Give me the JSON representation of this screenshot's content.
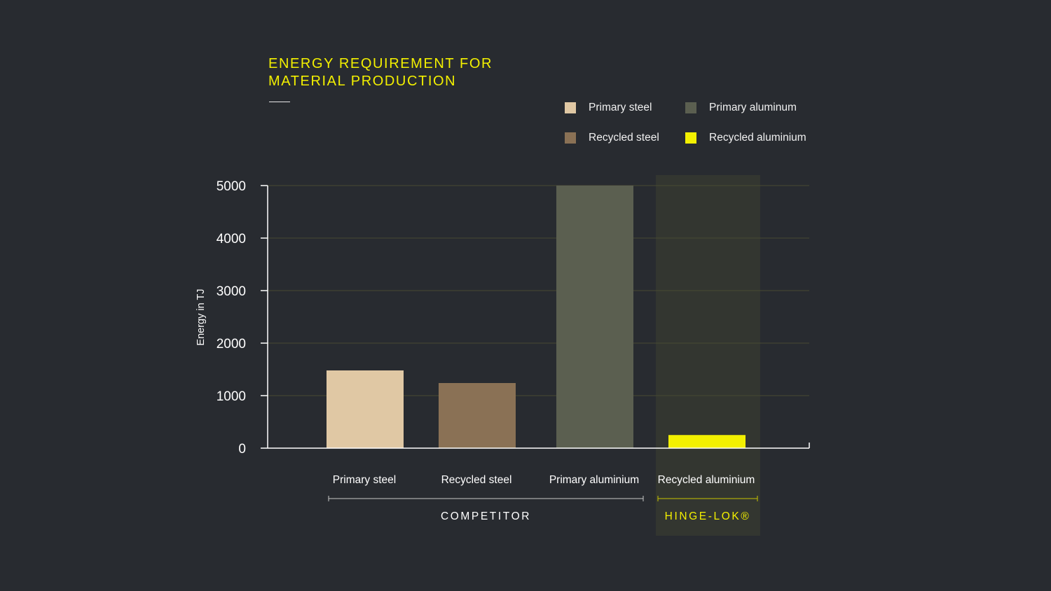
{
  "chart_data": {
    "type": "bar",
    "title_lines": [
      "ENERGY REQUIREMENT FOR",
      "MATERIAL PRODUCTION"
    ],
    "ylabel": "Energy in TJ",
    "ylim": [
      0,
      5000
    ],
    "yticks": [
      "0",
      "1000",
      "2000",
      "3000",
      "4000",
      "5000"
    ],
    "grid": true,
    "legend_position": "top-right",
    "legend": [
      {
        "label": "Primary steel",
        "color": "#e0c8a4"
      },
      {
        "label": "Primary aluminum",
        "color": "#5b5f50"
      },
      {
        "label": "Recycled steel",
        "color": "#8a7155"
      },
      {
        "label": "Recycled aluminium",
        "color": "#f3f000"
      }
    ],
    "categories": [
      "Primary steel",
      "Recycled steel",
      "Primary aluminium",
      "Recycled aluminium"
    ],
    "values": [
      1480,
      1240,
      5000,
      250
    ],
    "colors": [
      "#e0c8a4",
      "#8a7155",
      "#5b5f50",
      "#f3f000"
    ],
    "groups": [
      {
        "label": "COMPETITOR",
        "members": [
          0,
          1,
          2
        ],
        "color": "#ffffff"
      },
      {
        "label": "HINGE-LOK®",
        "members": [
          3
        ],
        "color": "#f3f000",
        "highlighted": true
      }
    ]
  }
}
